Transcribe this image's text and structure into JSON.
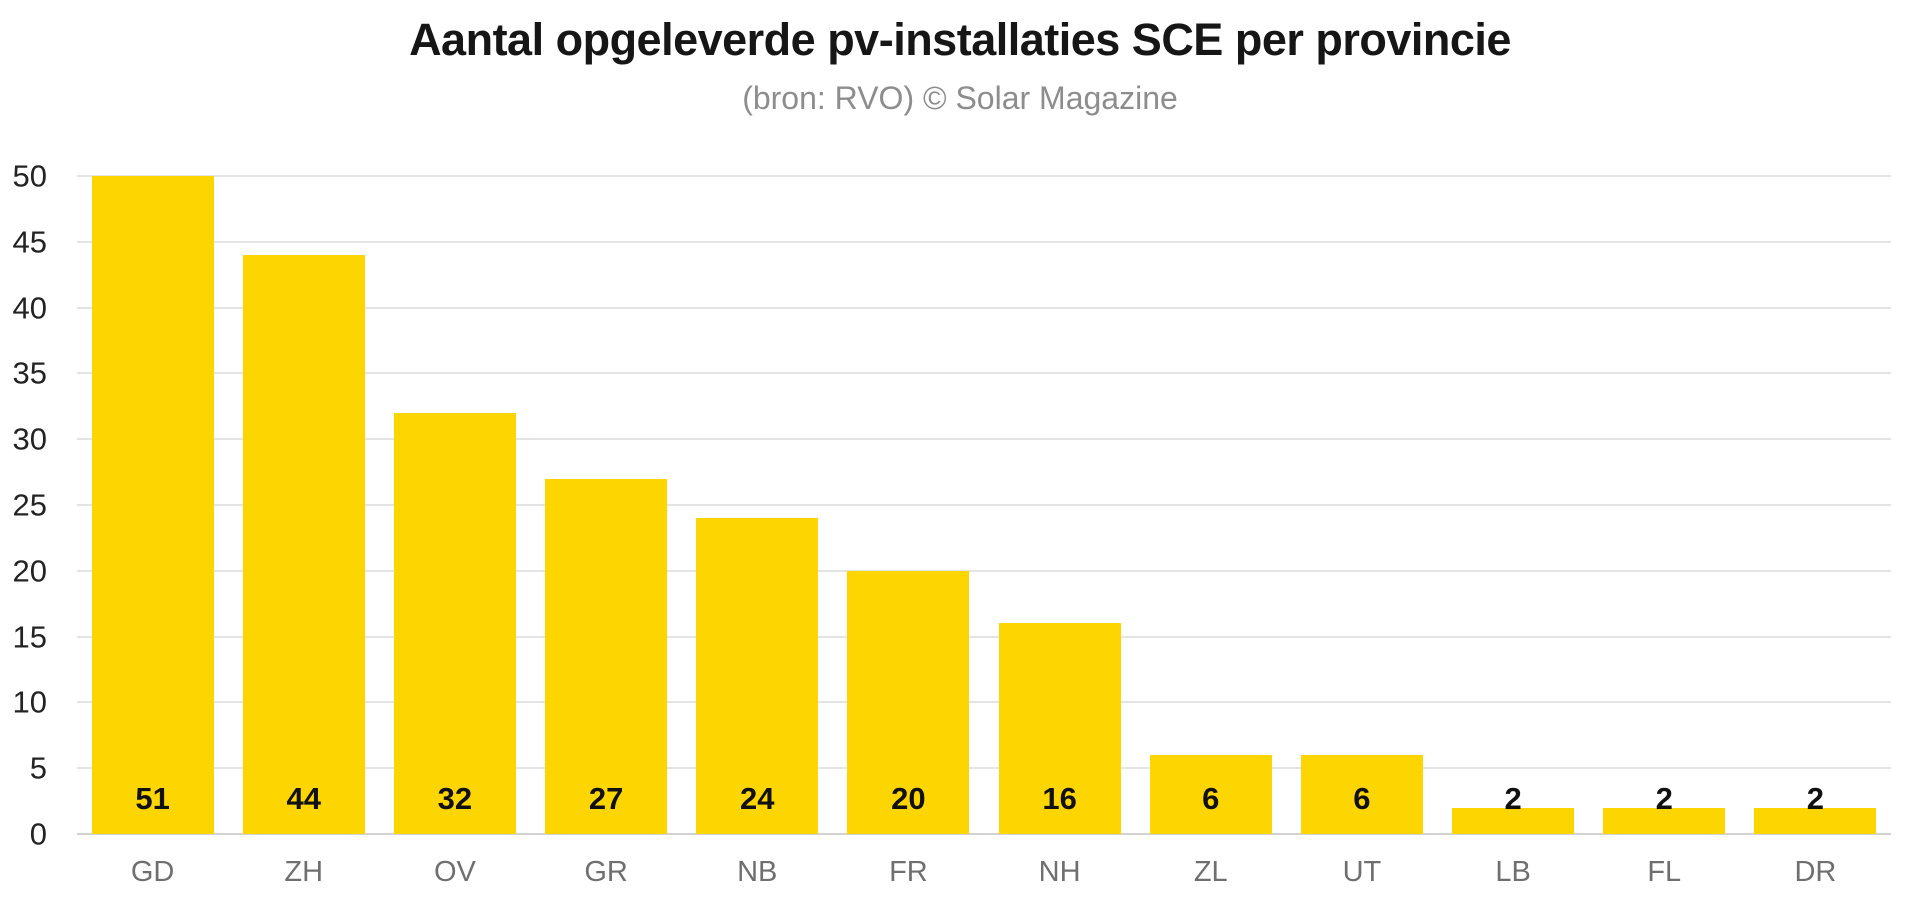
{
  "title": "Aantal opgeleverde pv-installaties SCE per provincie",
  "subtitle": "(bron: RVO) © Solar Magazine",
  "colors": {
    "bar": "#FDD500",
    "grid": "#e4e4e4",
    "zero_line": "#d2d2d2",
    "title_text": "#161616",
    "subtitle_text": "#8d8d8d",
    "ytick_text": "#232323",
    "xlabel_text": "#6f6f6f",
    "value_text": "#111111",
    "background": "#ffffff"
  },
  "chart_data": {
    "type": "bar",
    "title": "Aantal opgeleverde pv-installaties SCE per provincie",
    "subtitle": "(bron: RVO) © Solar Magazine",
    "categories": [
      "GD",
      "ZH",
      "OV",
      "GR",
      "NB",
      "FR",
      "NH",
      "ZL",
      "UT",
      "LB",
      "FL",
      "DR"
    ],
    "values": [
      51,
      44,
      32,
      27,
      24,
      20,
      16,
      6,
      6,
      2,
      2,
      2
    ],
    "xlabel": "",
    "ylabel": "",
    "ylim": [
      0,
      50
    ],
    "yticks": [
      0,
      5,
      10,
      15,
      20,
      25,
      30,
      35,
      40,
      45,
      50
    ],
    "grid": true,
    "legend": false,
    "value_labels": true,
    "bar_color": "#FDD500"
  }
}
